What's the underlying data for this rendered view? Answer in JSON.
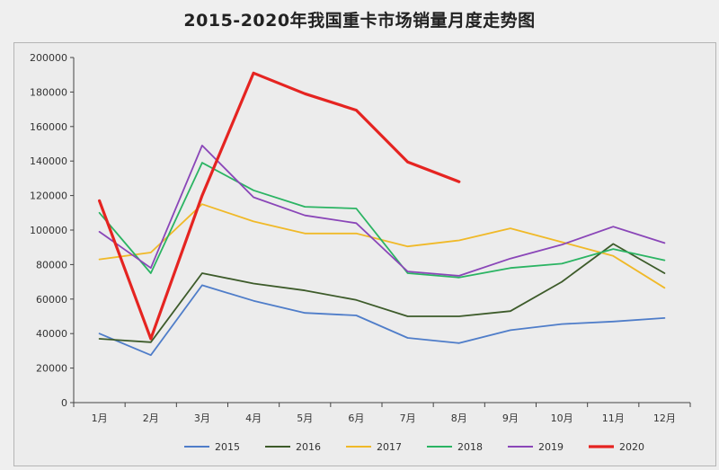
{
  "chart_data": {
    "type": "line",
    "title": "2015-2020年我国重卡市场销量月度走势图",
    "xlabel": "",
    "ylabel": "",
    "ylim": [
      0,
      200000
    ],
    "yticks": [
      0,
      20000,
      40000,
      60000,
      80000,
      100000,
      120000,
      140000,
      160000,
      180000,
      200000
    ],
    "categories": [
      "1月",
      "2月",
      "3月",
      "4月",
      "5月",
      "6月",
      "7月",
      "8月",
      "9月",
      "10月",
      "11月",
      "12月"
    ],
    "grid": false,
    "legend_position": "bottom",
    "series": [
      {
        "name": "2015",
        "color": "#4f7dc9",
        "values": [
          40000,
          27500,
          68000,
          59000,
          52000,
          50500,
          37500,
          34500,
          42000,
          45500,
          47000,
          49000
        ]
      },
      {
        "name": "2016",
        "color": "#3d5b2a",
        "values": [
          37000,
          35000,
          75000,
          69000,
          65000,
          59500,
          50000,
          50000,
          53000,
          70000,
          92000,
          75000
        ]
      },
      {
        "name": "2017",
        "color": "#f0b928",
        "values": [
          83000,
          87000,
          115000,
          105000,
          98000,
          98000,
          90500,
          94000,
          101000,
          93000,
          85000,
          66500
        ]
      },
      {
        "name": "2018",
        "color": "#2bb463",
        "values": [
          110000,
          75000,
          139000,
          123000,
          113500,
          112500,
          75000,
          72500,
          78000,
          80500,
          89000,
          82500
        ]
      },
      {
        "name": "2019",
        "color": "#8a46b8",
        "values": [
          99000,
          78000,
          149000,
          119000,
          108500,
          104000,
          76000,
          73500,
          83500,
          91500,
          102000,
          92500
        ]
      },
      {
        "name": "2020",
        "color": "#e52421",
        "values": [
          117000,
          37000,
          120000,
          191000,
          179000,
          169500,
          139500,
          128000,
          null,
          null,
          null,
          null
        ]
      }
    ]
  }
}
